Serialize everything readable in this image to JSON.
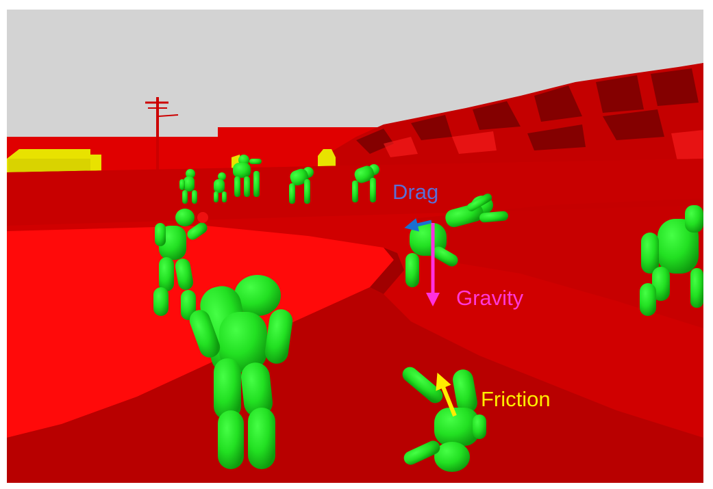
{
  "figure": {
    "description_free": true,
    "colors": {
      "sky": "#d3d3d3",
      "ground_bright": "#ff0a0a",
      "ground_dark": "#c00000",
      "ground_mid": "#e00000",
      "hill_dark": "#7a0000",
      "buildings": "#e8e200",
      "figures": "#22e022",
      "figures_shade": "#0e9a0e",
      "pole": "#cc0000",
      "frame": "#ffffff"
    },
    "annotations": {
      "drag": {
        "label": "Drag",
        "color": "#5a6fd6",
        "arrow_color": "#1a6fd0"
      },
      "gravity": {
        "label": "Gravity",
        "color": "#ff38d8",
        "arrow_color": "#ff30e0"
      },
      "friction": {
        "label": "Friction",
        "color": "#ffee00",
        "arrow_color": "#ffee00"
      }
    },
    "icons": [
      "drag-arrow-icon",
      "gravity-arrow-icon",
      "friction-arrow-icon"
    ]
  }
}
